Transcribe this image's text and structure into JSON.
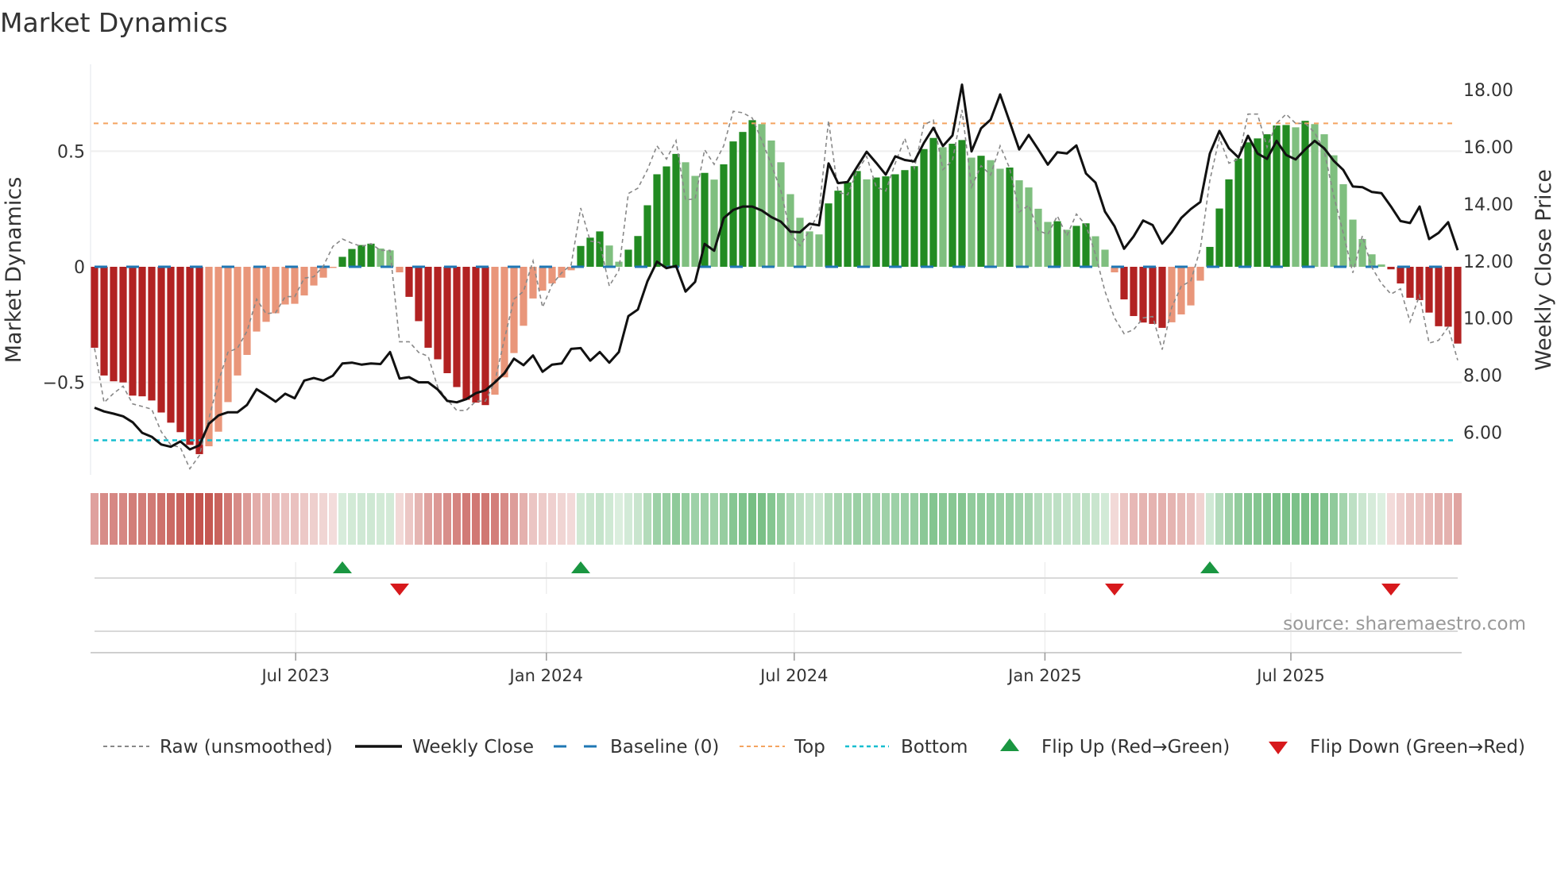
{
  "chart_data": {
    "type": "bar",
    "title": "Market Dynamics",
    "ylabel": "Market Dynamics",
    "y2label": "Weekly Close Price",
    "ylim": [
      -0.88,
      0.88
    ],
    "y2lim": [
      4.75,
      19.1
    ],
    "yticks": [
      {
        "v": 0.5,
        "label": "0.5"
      },
      {
        "v": 0,
        "label": "0"
      },
      {
        "v": -0.5,
        "label": "−0.5"
      }
    ],
    "y2ticks": [
      {
        "v": 18,
        "label": "18.00"
      },
      {
        "v": 16,
        "label": "16.00"
      },
      {
        "v": 14,
        "label": "14.00"
      },
      {
        "v": 12,
        "label": "12.00"
      },
      {
        "v": 10,
        "label": "10.00"
      },
      {
        "v": 8,
        "label": "8.00"
      },
      {
        "v": 6,
        "label": "6.00"
      }
    ],
    "xticks": [
      {
        "week": 21.1,
        "label": "Jul 2023"
      },
      {
        "week": 47.4,
        "label": "Jan 2024"
      },
      {
        "week": 73.4,
        "label": "Jul 2024"
      },
      {
        "week": 99.7,
        "label": "Jan 2025"
      },
      {
        "week": 125.5,
        "label": "Jul 2025"
      }
    ],
    "top_level": 0.62,
    "bottom_level": -0.75,
    "baseline": 0,
    "source": "source: sharemaestro.com",
    "colors": {
      "red_strong": "#b22222",
      "red_weak": "#e9967a",
      "green_strong": "#228b22",
      "green_weak": "#7fbf7f",
      "raw": "#888888",
      "close": "#111111",
      "baseline": "#1f77b4",
      "top": "#f4a460",
      "bottom": "#17becf",
      "flip_up": "#1a9641",
      "flip_down": "#d7191c"
    },
    "legend": [
      {
        "key": "raw",
        "label": "Raw (unsmoothed)"
      },
      {
        "key": "close",
        "label": "Weekly Close"
      },
      {
        "key": "baseline",
        "label": "Baseline (0)"
      },
      {
        "key": "top",
        "label": "Top"
      },
      {
        "key": "bottom",
        "label": "Bottom"
      },
      {
        "key": "flip_up",
        "label": "Flip Up (Red→Green)"
      },
      {
        "key": "flip_down",
        "label": "Flip Down (Green→Red)"
      }
    ],
    "values": [
      -0.35,
      -0.47,
      -0.495,
      -0.5,
      -0.557,
      -0.56,
      -0.578,
      -0.63,
      -0.674,
      -0.715,
      -0.77,
      -0.81,
      -0.776,
      -0.713,
      -0.585,
      -0.47,
      -0.381,
      -0.28,
      -0.238,
      -0.201,
      -0.163,
      -0.16,
      -0.124,
      -0.081,
      -0.047,
      -0.005,
      0.043,
      0.077,
      0.094,
      0.1,
      0.079,
      0.071,
      -0.024,
      -0.13,
      -0.235,
      -0.35,
      -0.4,
      -0.46,
      -0.52,
      -0.575,
      -0.587,
      -0.598,
      -0.553,
      -0.478,
      -0.373,
      -0.255,
      -0.137,
      -0.103,
      -0.072,
      -0.047,
      -0.015,
      0.09,
      0.126,
      0.153,
      0.092,
      0.022,
      0.074,
      0.133,
      0.266,
      0.4,
      0.434,
      0.488,
      0.452,
      0.393,
      0.406,
      0.377,
      0.443,
      0.542,
      0.583,
      0.634,
      0.617,
      0.546,
      0.452,
      0.314,
      0.212,
      0.153,
      0.14,
      0.274,
      0.329,
      0.365,
      0.414,
      0.378,
      0.386,
      0.391,
      0.4,
      0.418,
      0.435,
      0.509,
      0.557,
      0.517,
      0.532,
      0.548,
      0.472,
      0.48,
      0.461,
      0.424,
      0.429,
      0.374,
      0.343,
      0.251,
      0.194,
      0.197,
      0.16,
      0.177,
      0.188,
      0.132,
      0.074,
      -0.024,
      -0.141,
      -0.213,
      -0.241,
      -0.247,
      -0.264,
      -0.24,
      -0.206,
      -0.167,
      -0.06,
      0.086,
      0.252,
      0.378,
      0.468,
      0.538,
      0.555,
      0.573,
      0.611,
      0.613,
      0.603,
      0.631,
      0.617,
      0.573,
      0.482,
      0.357,
      0.204,
      0.12,
      0.054,
      0.01,
      -0.011,
      -0.072,
      -0.134,
      -0.144,
      -0.198,
      -0.257,
      -0.259,
      -0.332
    ],
    "raw": [
      -0.352,
      -0.587,
      -0.547,
      -0.516,
      -0.593,
      -0.604,
      -0.616,
      -0.713,
      -0.77,
      -0.781,
      -0.873,
      -0.816,
      -0.656,
      -0.495,
      -0.369,
      -0.352,
      -0.278,
      -0.14,
      -0.203,
      -0.198,
      -0.129,
      -0.129,
      -0.049,
      -0.043,
      0.003,
      0.088,
      0.12,
      0.102,
      0.088,
      0.1,
      0.071,
      0.071,
      -0.324,
      -0.324,
      -0.37,
      -0.387,
      -0.52,
      -0.575,
      -0.621,
      -0.621,
      -0.581,
      -0.581,
      -0.495,
      -0.312,
      -0.14,
      -0.106,
      0.025,
      -0.175,
      -0.077,
      -0.026,
      0.009,
      0.254,
      0.111,
      0.105,
      -0.083,
      -0.015,
      0.317,
      0.34,
      0.42,
      0.523,
      0.466,
      0.546,
      0.289,
      0.294,
      0.506,
      0.443,
      0.523,
      0.672,
      0.666,
      0.643,
      0.546,
      0.443,
      0.329,
      0.145,
      0.091,
      0.157,
      0.237,
      0.632,
      0.323,
      0.311,
      0.414,
      0.477,
      0.345,
      0.328,
      0.448,
      0.555,
      0.426,
      0.614,
      0.634,
      0.42,
      0.46,
      0.678,
      0.345,
      0.437,
      0.397,
      0.523,
      0.426,
      0.237,
      0.266,
      0.157,
      0.14,
      0.22,
      0.134,
      0.228,
      0.18,
      0.054,
      -0.106,
      -0.221,
      -0.289,
      -0.272,
      -0.221,
      -0.215,
      -0.358,
      -0.175,
      -0.084,
      -0.061,
      0.077,
      0.374,
      0.557,
      0.448,
      0.466,
      0.66,
      0.66,
      0.517,
      0.62,
      0.66,
      0.62,
      0.62,
      0.58,
      0.5,
      0.306,
      0.145,
      -0.026,
      0.134,
      -0.003,
      -0.072,
      -0.118,
      -0.095,
      -0.238,
      -0.124,
      -0.33,
      -0.318,
      -0.261,
      -0.404
    ],
    "close": [
      6.86,
      6.73,
      6.65,
      6.56,
      6.35,
      5.98,
      5.84,
      5.57,
      5.49,
      5.68,
      5.4,
      5.54,
      6.3,
      6.59,
      6.7,
      6.7,
      6.96,
      7.51,
      7.3,
      7.07,
      7.35,
      7.19,
      7.81,
      7.9,
      7.81,
      7.98,
      8.41,
      8.44,
      8.37,
      8.41,
      8.39,
      8.81,
      7.88,
      7.93,
      7.75,
      7.75,
      7.5,
      7.1,
      7.05,
      7.16,
      7.37,
      7.47,
      7.75,
      8.07,
      8.58,
      8.35,
      8.69,
      8.12,
      8.37,
      8.41,
      8.92,
      8.95,
      8.51,
      8.81,
      8.44,
      8.81,
      10.07,
      10.3,
      11.29,
      11.98,
      11.75,
      11.83,
      10.93,
      11.27,
      12.6,
      12.36,
      13.5,
      13.79,
      13.91,
      13.91,
      13.77,
      13.54,
      13.38,
      13.03,
      13.01,
      13.31,
      13.25,
      15.42,
      14.73,
      14.77,
      15.3,
      15.83,
      15.44,
      15.03,
      15.67,
      15.54,
      15.49,
      16.14,
      16.67,
      16.03,
      16.4,
      18.18,
      15.84,
      16.65,
      16.95,
      17.84,
      16.88,
      15.91,
      16.42,
      15.91,
      15.38,
      15.81,
      15.77,
      16.05,
      15.07,
      14.75,
      13.73,
      13.22,
      12.43,
      12.86,
      13.42,
      13.26,
      12.61,
      13.01,
      13.51,
      13.82,
      14.07,
      15.77,
      16.56,
      15.95,
      15.63,
      16.39,
      15.77,
      15.58,
      16.21,
      15.72,
      15.56,
      15.91,
      16.21,
      15.95,
      15.51,
      15.19,
      14.61,
      14.59,
      14.42,
      14.38,
      13.91,
      13.4,
      13.33,
      13.91,
      12.77,
      12.99,
      13.36,
      12.38
    ]
  }
}
